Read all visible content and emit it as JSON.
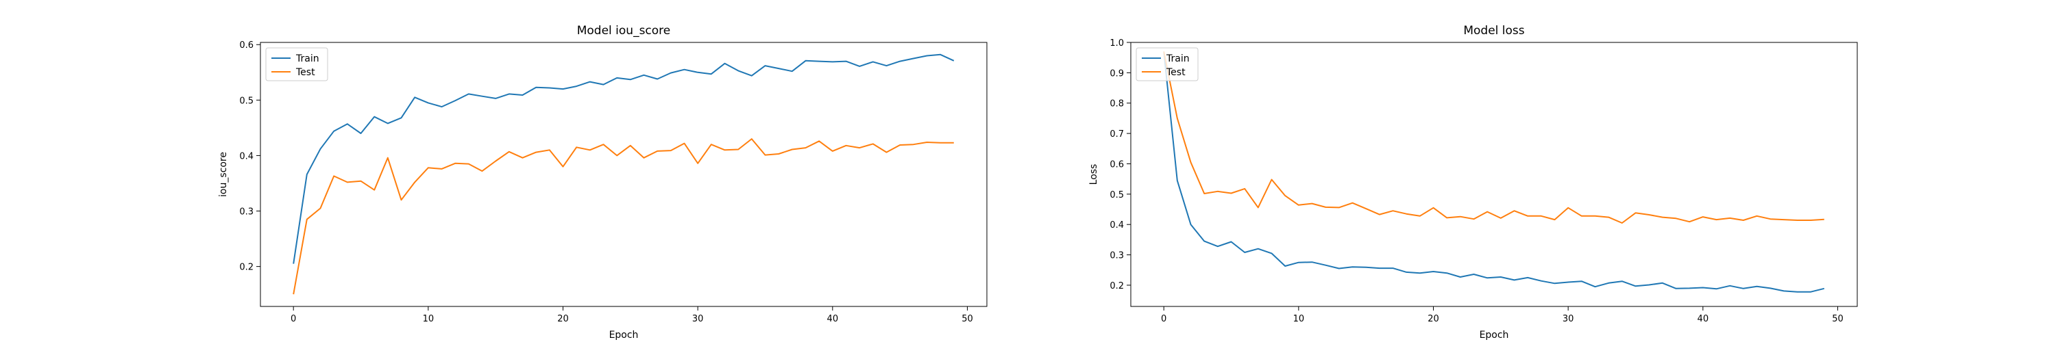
{
  "chart_data": [
    {
      "type": "line",
      "title": "Model iou_score",
      "xlabel": "Epoch",
      "ylabel": "iou_score",
      "xlim": [
        -2.45,
        51.45
      ],
      "ylim": [
        0.128,
        0.604
      ],
      "xticks": [
        0,
        10,
        20,
        30,
        40,
        50
      ],
      "yticks": [
        0.2,
        0.3,
        0.4,
        0.5,
        0.6
      ],
      "ytick_labels": [
        "0.2",
        "0.3",
        "0.4",
        "0.5",
        "0.6"
      ],
      "legend_position": "upper-left",
      "grid": false,
      "x": [
        0,
        1,
        2,
        3,
        4,
        5,
        6,
        7,
        8,
        9,
        10,
        11,
        12,
        13,
        14,
        15,
        16,
        17,
        18,
        19,
        20,
        21,
        22,
        23,
        24,
        25,
        26,
        27,
        28,
        29,
        30,
        31,
        32,
        33,
        34,
        35,
        36,
        37,
        38,
        39,
        40,
        41,
        42,
        43,
        44,
        45,
        46,
        47,
        48,
        49
      ],
      "series": [
        {
          "name": "Train",
          "color": "#1f77b4",
          "values": [
            0.205,
            0.366,
            0.412,
            0.444,
            0.457,
            0.44,
            0.47,
            0.458,
            0.468,
            0.505,
            0.495,
            0.488,
            0.499,
            0.511,
            0.507,
            0.503,
            0.511,
            0.509,
            0.523,
            0.522,
            0.52,
            0.525,
            0.533,
            0.528,
            0.54,
            0.537,
            0.545,
            0.538,
            0.549,
            0.555,
            0.55,
            0.547,
            0.566,
            0.553,
            0.544,
            0.562,
            0.557,
            0.552,
            0.571,
            0.57,
            0.569,
            0.57,
            0.561,
            0.569,
            0.562,
            0.57,
            0.575,
            0.58,
            0.582,
            0.571
          ]
        },
        {
          "name": "Test",
          "color": "#ff7f0e",
          "values": [
            0.15,
            0.285,
            0.305,
            0.363,
            0.352,
            0.354,
            0.338,
            0.396,
            0.32,
            0.352,
            0.378,
            0.376,
            0.386,
            0.385,
            0.372,
            0.39,
            0.407,
            0.396,
            0.406,
            0.41,
            0.38,
            0.415,
            0.41,
            0.42,
            0.4,
            0.418,
            0.396,
            0.408,
            0.409,
            0.422,
            0.386,
            0.42,
            0.41,
            0.411,
            0.43,
            0.401,
            0.403,
            0.411,
            0.414,
            0.426,
            0.408,
            0.418,
            0.414,
            0.421,
            0.406,
            0.419,
            0.42,
            0.424,
            0.423,
            0.423
          ]
        }
      ]
    },
    {
      "type": "line",
      "title": "Model loss",
      "xlabel": "Epoch",
      "ylabel": "Loss",
      "xlim": [
        -2.45,
        51.45
      ],
      "ylim": [
        0.13,
        1.0
      ],
      "xticks": [
        0,
        10,
        20,
        30,
        40,
        50
      ],
      "yticks": [
        0.2,
        0.3,
        0.4,
        0.5,
        0.6,
        0.7,
        0.8,
        0.9,
        1.0
      ],
      "ytick_labels": [
        "0.2",
        "0.3",
        "0.4",
        "0.5",
        "0.6",
        "0.7",
        "0.8",
        "0.9",
        "1.0"
      ],
      "legend_position": "upper-left",
      "grid": false,
      "x": [
        0,
        1,
        2,
        3,
        4,
        5,
        6,
        7,
        8,
        9,
        10,
        11,
        12,
        13,
        14,
        15,
        16,
        17,
        18,
        19,
        20,
        21,
        22,
        23,
        24,
        25,
        26,
        27,
        28,
        29,
        30,
        31,
        32,
        33,
        34,
        35,
        36,
        37,
        38,
        39,
        40,
        41,
        42,
        43,
        44,
        45,
        46,
        47,
        48,
        49
      ],
      "series": [
        {
          "name": "Train",
          "color": "#1f77b4",
          "values": [
            0.97,
            0.545,
            0.4,
            0.345,
            0.328,
            0.343,
            0.308,
            0.32,
            0.305,
            0.263,
            0.275,
            0.276,
            0.266,
            0.255,
            0.26,
            0.259,
            0.256,
            0.256,
            0.243,
            0.24,
            0.245,
            0.24,
            0.227,
            0.236,
            0.224,
            0.227,
            0.217,
            0.225,
            0.214,
            0.206,
            0.21,
            0.213,
            0.195,
            0.207,
            0.213,
            0.197,
            0.201,
            0.207,
            0.189,
            0.19,
            0.192,
            0.188,
            0.198,
            0.189,
            0.196,
            0.19,
            0.181,
            0.178,
            0.178,
            0.189
          ]
        },
        {
          "name": "Test",
          "color": "#ff7f0e",
          "values": [
            0.97,
            0.75,
            0.605,
            0.502,
            0.509,
            0.503,
            0.518,
            0.456,
            0.548,
            0.495,
            0.464,
            0.469,
            0.457,
            0.456,
            0.471,
            0.452,
            0.433,
            0.445,
            0.435,
            0.428,
            0.455,
            0.422,
            0.426,
            0.418,
            0.442,
            0.421,
            0.445,
            0.428,
            0.428,
            0.416,
            0.455,
            0.428,
            0.428,
            0.424,
            0.405,
            0.438,
            0.432,
            0.424,
            0.42,
            0.409,
            0.425,
            0.416,
            0.421,
            0.414,
            0.428,
            0.418,
            0.416,
            0.414,
            0.414,
            0.417
          ]
        }
      ]
    }
  ]
}
